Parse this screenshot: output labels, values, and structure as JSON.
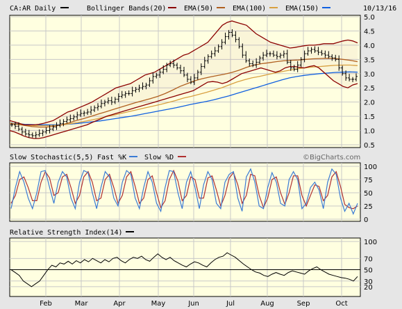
{
  "header": {
    "symbol_label": "CA:AR Daily",
    "bollinger_label": "Bollinger Bands(20)",
    "ema50_label": "EMA(50)",
    "ema100_label": "EMA(100)",
    "ema150_label": "EMA(150)",
    "date_label": "10/13/16"
  },
  "watermark": "©BigCharts.com",
  "colors": {
    "price": "#000000",
    "bollinger": "#8b0000",
    "ema50": "#b06020",
    "ema100": "#d8a040",
    "ema150": "#1060e0",
    "fast_k": "#3a7bd5",
    "slow_d": "#b03030",
    "rsi": "#000000",
    "panel_bg": "#ffffe0"
  },
  "chart_data": [
    {
      "type": "ohlc",
      "title": "CA:AR Daily",
      "ylim": [
        0.5,
        5.0
      ],
      "yticks": [
        "0.5",
        "1.0",
        "1.5",
        "2.0",
        "2.5",
        "3.0",
        "3.5",
        "4.0",
        "4.5",
        "5.0"
      ],
      "x_labels": [
        "Feb",
        "Mar",
        "Apr",
        "May",
        "Jun",
        "Jul",
        "Aug",
        "Sep",
        "Oct"
      ],
      "grid": true,
      "series": [
        {
          "name": "CA:AR Daily",
          "kind": "close",
          "values": [
            1.2,
            1.15,
            1.05,
            0.95,
            0.88,
            0.85,
            0.82,
            0.85,
            0.9,
            0.95,
            1.0,
            1.05,
            1.12,
            1.18,
            1.25,
            1.32,
            1.38,
            1.42,
            1.48,
            1.55,
            1.6,
            1.62,
            1.65,
            1.72,
            1.8,
            1.85,
            1.95,
            2.0,
            2.05,
            2.0,
            2.1,
            2.2,
            2.25,
            2.3,
            2.3,
            2.4,
            2.45,
            2.5,
            2.55,
            2.6,
            2.75,
            2.9,
            2.95,
            3.05,
            3.15,
            3.3,
            3.35,
            3.3,
            3.2,
            3.1,
            2.95,
            2.8,
            2.7,
            2.85,
            3.05,
            3.25,
            3.45,
            3.6,
            3.7,
            3.8,
            3.95,
            4.1,
            4.3,
            4.45,
            4.35,
            4.2,
            3.95,
            3.65,
            3.45,
            3.35,
            3.3,
            3.4,
            3.55,
            3.65,
            3.7,
            3.7,
            3.65,
            3.6,
            3.65,
            3.7,
            3.4,
            3.2,
            3.15,
            3.3,
            3.5,
            3.7,
            3.8,
            3.85,
            3.8,
            3.75,
            3.7,
            3.65,
            3.6,
            3.55,
            3.5,
            3.2,
            3.0,
            2.85,
            2.8,
            2.8,
            2.9
          ]
        },
        {
          "name": "Bollinger Bands(20)",
          "kind": "upper",
          "values": [
            1.35,
            1.3,
            1.25,
            1.2,
            1.2,
            1.2,
            1.22,
            1.25,
            1.3,
            1.35,
            1.45,
            1.55,
            1.65,
            1.7,
            1.78,
            1.85,
            1.92,
            2.0,
            2.1,
            2.2,
            2.3,
            2.4,
            2.5,
            2.55,
            2.6,
            2.65,
            2.75,
            2.85,
            2.95,
            3.0,
            3.05,
            3.15,
            3.25,
            3.35,
            3.45,
            3.55,
            3.65,
            3.7,
            3.8,
            3.9,
            4.0,
            4.1,
            4.3,
            4.5,
            4.7,
            4.8,
            4.85,
            4.8,
            4.75,
            4.7,
            4.55,
            4.4,
            4.3,
            4.2,
            4.1,
            4.05,
            4.0,
            3.95,
            3.9,
            3.92,
            3.95,
            3.98,
            4.0,
            4.0,
            4.02,
            4.05,
            4.05,
            4.05,
            4.1,
            4.15,
            4.18,
            4.15,
            4.08
          ]
        },
        {
          "name": "Bollinger Bands(20)",
          "kind": "lower",
          "values": [
            1.0,
            0.95,
            0.88,
            0.8,
            0.75,
            0.72,
            0.72,
            0.75,
            0.8,
            0.85,
            0.9,
            0.95,
            1.0,
            1.05,
            1.1,
            1.15,
            1.2,
            1.28,
            1.35,
            1.42,
            1.5,
            1.55,
            1.6,
            1.65,
            1.7,
            1.75,
            1.8,
            1.85,
            1.9,
            1.95,
            2.0,
            2.05,
            2.1,
            2.15,
            2.2,
            2.25,
            2.3,
            2.35,
            2.4,
            2.5,
            2.6,
            2.7,
            2.72,
            2.7,
            2.65,
            2.7,
            2.8,
            2.9,
            3.0,
            3.05,
            3.1,
            3.15,
            3.2,
            3.15,
            3.1,
            3.05,
            3.1,
            3.2,
            3.25,
            3.25,
            3.22,
            3.2,
            3.25,
            3.28,
            3.2,
            3.05,
            2.9,
            2.75,
            2.65,
            2.55,
            2.5,
            2.6,
            2.65
          ]
        },
        {
          "name": "EMA(50)",
          "kind": "ema50",
          "values": [
            1.25,
            1.22,
            1.18,
            1.14,
            1.12,
            1.12,
            1.15,
            1.2,
            1.27,
            1.35,
            1.42,
            1.5,
            1.58,
            1.66,
            1.74,
            1.82,
            1.9,
            1.98,
            2.05,
            2.12,
            2.2,
            2.3,
            2.42,
            2.55,
            2.65,
            2.75,
            2.82,
            2.88,
            2.93,
            2.98,
            3.04,
            3.12,
            3.22,
            3.3,
            3.35,
            3.38,
            3.42,
            3.45,
            3.47,
            3.48,
            3.5,
            3.52,
            3.53,
            3.54,
            3.53,
            3.5,
            3.47,
            3.42
          ]
        },
        {
          "name": "EMA(100)",
          "kind": "ema100",
          "values": [
            1.25,
            1.23,
            1.2,
            1.18,
            1.17,
            1.17,
            1.18,
            1.2,
            1.24,
            1.28,
            1.33,
            1.38,
            1.44,
            1.5,
            1.56,
            1.62,
            1.68,
            1.74,
            1.8,
            1.86,
            1.92,
            1.99,
            2.06,
            2.14,
            2.2,
            2.27,
            2.34,
            2.42,
            2.5,
            2.6,
            2.7,
            2.78,
            2.85,
            2.9,
            2.96,
            3.02,
            3.07,
            3.12,
            3.17,
            3.2,
            3.23,
            3.25,
            3.27,
            3.29,
            3.3,
            3.3,
            3.28
          ]
        },
        {
          "name": "EMA(150)",
          "kind": "ema150",
          "values": [
            1.25,
            1.24,
            1.22,
            1.21,
            1.2,
            1.2,
            1.2,
            1.21,
            1.23,
            1.25,
            1.28,
            1.31,
            1.34,
            1.38,
            1.42,
            1.46,
            1.5,
            1.55,
            1.6,
            1.65,
            1.7,
            1.75,
            1.8,
            1.86,
            1.92,
            1.97,
            2.02,
            2.08,
            2.15,
            2.22,
            2.3,
            2.38,
            2.46,
            2.54,
            2.62,
            2.7,
            2.78,
            2.85,
            2.9,
            2.94,
            2.97,
            3.0,
            3.02,
            3.04,
            3.05,
            3.06,
            3.05
          ]
        }
      ]
    },
    {
      "type": "line",
      "title": "Slow Stochastic(5,5)",
      "ylim": [
        0,
        100
      ],
      "yticks": [
        "0",
        "25",
        "50",
        "75",
        "100"
      ],
      "grid": true,
      "series": [
        {
          "name": "Fast %K",
          "values": [
            20,
            60,
            90,
            70,
            40,
            20,
            50,
            90,
            92,
            60,
            30,
            70,
            90,
            80,
            40,
            20,
            70,
            92,
            88,
            50,
            20,
            60,
            90,
            80,
            40,
            25,
            70,
            92,
            85,
            40,
            20,
            60,
            90,
            70,
            30,
            15,
            60,
            92,
            90,
            50,
            20,
            70,
            90,
            60,
            20,
            65,
            90,
            75,
            30,
            20,
            70,
            85,
            90,
            40,
            15,
            80,
            95,
            70,
            25,
            20,
            60,
            88,
            70,
            30,
            25,
            75,
            90,
            75,
            20,
            30,
            60,
            70,
            55,
            20,
            70,
            95,
            85,
            40,
            15,
            30,
            10,
            30
          ]
        },
        {
          "name": "Slow %D",
          "values": [
            30,
            45,
            75,
            80,
            60,
            35,
            35,
            70,
            90,
            78,
            45,
            50,
            80,
            85,
            60,
            30,
            45,
            80,
            90,
            70,
            35,
            40,
            75,
            85,
            60,
            30,
            45,
            80,
            90,
            62,
            30,
            40,
            75,
            82,
            50,
            22,
            35,
            75,
            92,
            72,
            35,
            45,
            80,
            75,
            40,
            40,
            78,
            82,
            55,
            25,
            45,
            78,
            88,
            65,
            30,
            45,
            85,
            82,
            45,
            22,
            40,
            75,
            80,
            50,
            28,
            50,
            82,
            82,
            45,
            25,
            45,
            65,
            62,
            35,
            45,
            80,
            90,
            62,
            28,
            22,
            20,
            25
          ]
        }
      ]
    },
    {
      "type": "line",
      "title": "Relative Strength Index(14)",
      "ylim": [
        0,
        100
      ],
      "yticks": [
        "20",
        "30",
        "50",
        "70",
        "100"
      ],
      "grid": true,
      "reference_line": 50,
      "series": [
        {
          "name": "Relative Strength Index(14)",
          "values": [
            50,
            45,
            40,
            30,
            25,
            20,
            25,
            30,
            40,
            50,
            58,
            55,
            62,
            60,
            65,
            60,
            66,
            62,
            68,
            64,
            70,
            66,
            62,
            68,
            64,
            70,
            72,
            66,
            62,
            68,
            72,
            70,
            74,
            68,
            65,
            72,
            78,
            72,
            68,
            72,
            66,
            62,
            58,
            55,
            60,
            64,
            62,
            58,
            55,
            62,
            68,
            72,
            74,
            80,
            76,
            72,
            66,
            60,
            55,
            50,
            46,
            44,
            40,
            38,
            42,
            45,
            42,
            40,
            45,
            48,
            46,
            44,
            42,
            48,
            52,
            55,
            50,
            46,
            42,
            40,
            38,
            36,
            35,
            33,
            30,
            38
          ]
        }
      ]
    }
  ]
}
